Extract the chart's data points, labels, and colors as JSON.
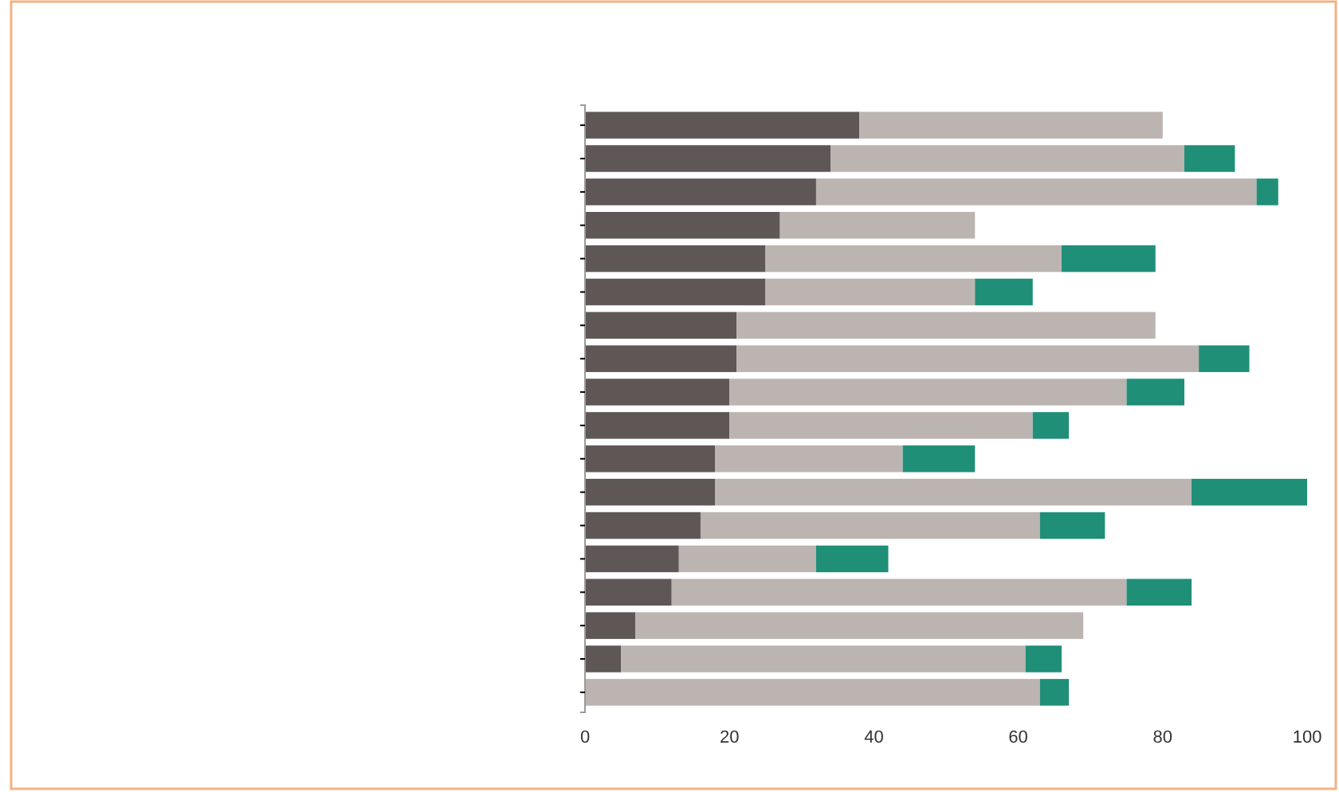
{
  "chart_data": {
    "type": "bar",
    "orientation": "horizontal",
    "stacked": true,
    "categories": [
      null,
      null,
      null,
      null,
      null,
      null,
      null,
      null,
      null,
      null,
      null,
      null,
      null,
      null,
      null,
      null,
      null,
      null
    ],
    "series": [
      {
        "color": "#5e5755",
        "values": [
          38,
          34,
          32,
          27,
          25,
          25,
          21,
          21,
          20,
          20,
          18,
          18,
          16,
          13,
          12,
          7,
          5,
          0
        ]
      },
      {
        "color": "#bcb4b1",
        "values": [
          42,
          49,
          61,
          27,
          41,
          29,
          58,
          64,
          55,
          42,
          26,
          66,
          47,
          19,
          63,
          62,
          56,
          63
        ]
      },
      {
        "color": "#1f8f78",
        "values": [
          0,
          7,
          3,
          0,
          13,
          8,
          0,
          7,
          8,
          5,
          10,
          16,
          9,
          10,
          9,
          0,
          5,
          4
        ]
      }
    ],
    "xlim": [
      0,
      100
    ],
    "xticks": [
      0,
      20,
      40,
      60,
      80,
      100
    ],
    "grid": false
  }
}
